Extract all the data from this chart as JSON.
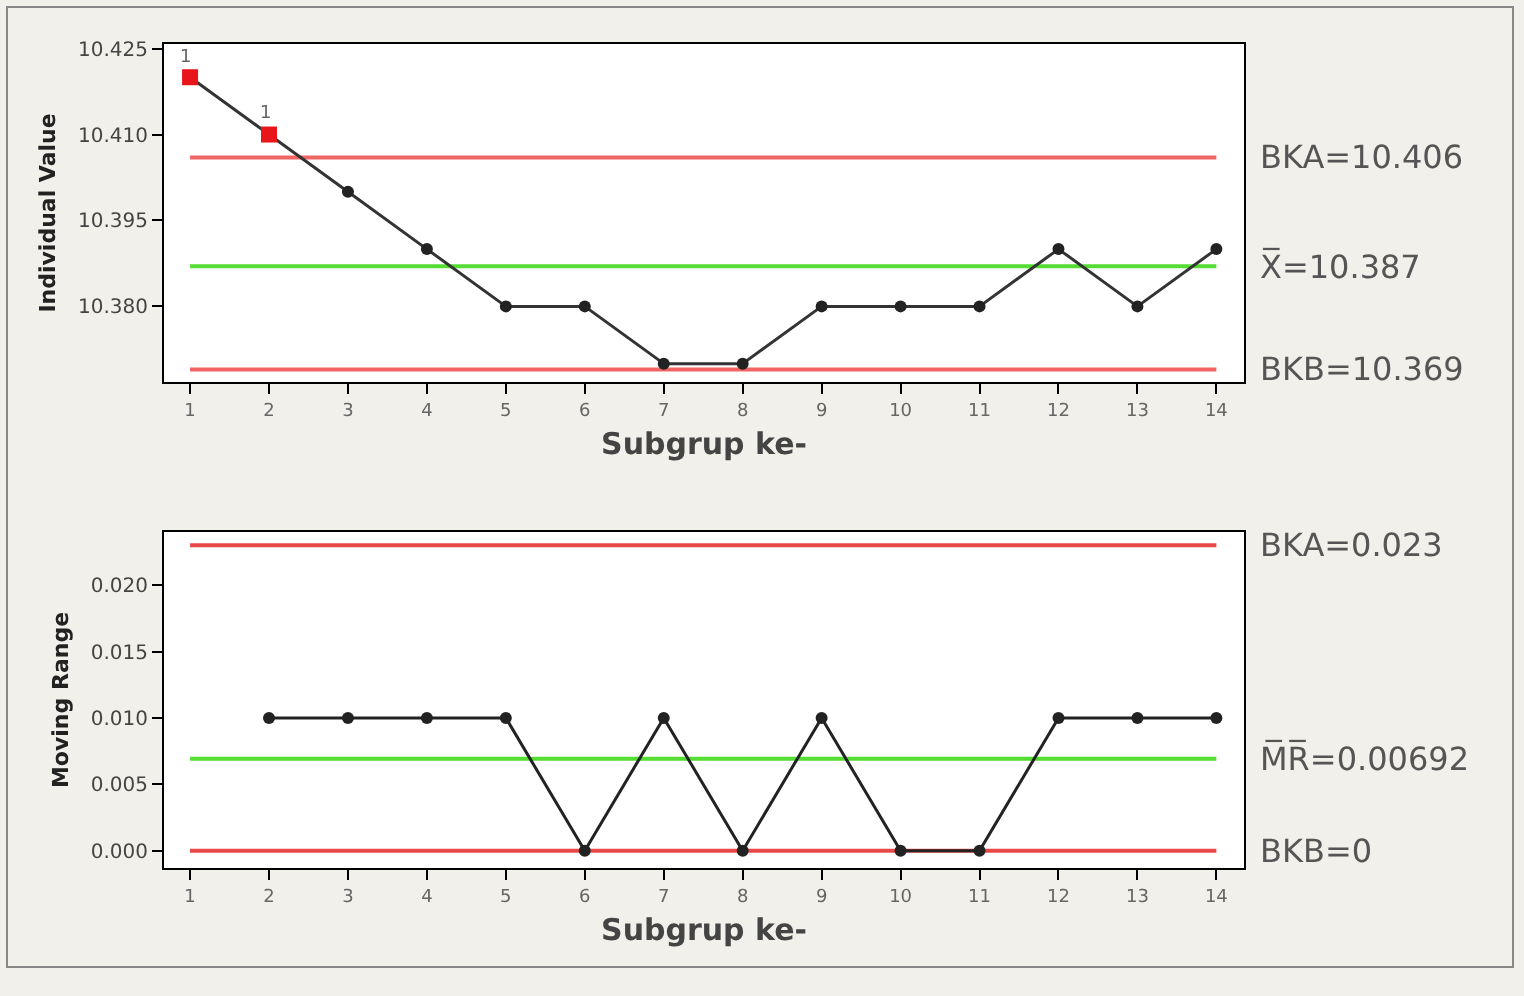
{
  "chart_data": [
    {
      "type": "line",
      "xlabel": "Subgrup ke-",
      "ylabel": "Individual Value",
      "x": [
        1,
        2,
        3,
        4,
        5,
        6,
        7,
        8,
        9,
        10,
        11,
        12,
        13,
        14
      ],
      "series": [
        {
          "type": "line",
          "color": "#333333",
          "marker": "none",
          "values": [
            10.42,
            10.41,
            10.4,
            10.39,
            10.38,
            10.38,
            10.37,
            10.37,
            10.38,
            10.38,
            10.38,
            10.39,
            10.38,
            10.39
          ]
        },
        {
          "type": "scatter",
          "color": "#222222",
          "marker": "circle",
          "values": [
            null,
            null,
            10.4,
            10.39,
            10.38,
            10.38,
            10.37,
            10.37,
            10.38,
            10.38,
            10.38,
            10.39,
            10.38,
            10.39
          ]
        },
        {
          "type": "scatter",
          "color": "#e8161b",
          "marker": "square",
          "values": [
            10.42,
            10.41,
            null,
            null,
            null,
            null,
            null,
            null,
            null,
            null,
            null,
            null,
            null,
            null
          ]
        }
      ],
      "xlim": [
        0.67,
        14.35
      ],
      "xticks": [
        1,
        2,
        3,
        4,
        5,
        6,
        7,
        8,
        9,
        10,
        11,
        12,
        13,
        14
      ],
      "ylim": [
        10.3668,
        10.4258
      ],
      "yticks": [
        {
          "value": 10.38,
          "label": "10.380"
        },
        {
          "value": 10.395,
          "label": "10.395"
        },
        {
          "value": 10.41,
          "label": "10.410"
        },
        {
          "value": 10.425,
          "label": "10.425"
        }
      ],
      "ref_lines": [
        {
          "axis": "y",
          "value": 10.406,
          "label": "BKA=10.406",
          "color": "#f06464"
        },
        {
          "axis": "y",
          "value": 10.387,
          "label": "X̅=10.387",
          "color": "#55dd33"
        },
        {
          "axis": "y",
          "value": 10.369,
          "label": "BKB=10.369",
          "color": "#f06464"
        }
      ],
      "annotations": [
        {
          "text": "1",
          "x": 1,
          "y": 10.42
        },
        {
          "text": "1",
          "x": 2,
          "y": 10.41
        }
      ]
    },
    {
      "type": "line",
      "xlabel": "Subgrup ke-",
      "ylabel": "Moving Range",
      "series": [
        {
          "type": "line",
          "color": "#222222",
          "marker": "circle",
          "x": [
            2,
            3,
            4,
            5,
            6,
            7,
            8,
            9,
            10,
            11,
            12,
            13,
            14
          ],
          "values": [
            0.01,
            0.01,
            0.01,
            0.01,
            0,
            0.01,
            0,
            0.01,
            0,
            0,
            0.01,
            0.01,
            0.01
          ]
        }
      ],
      "xlim": [
        0.67,
        14.35
      ],
      "xticks": [
        1,
        2,
        3,
        4,
        5,
        6,
        7,
        8,
        9,
        10,
        11,
        12,
        13,
        14
      ],
      "ylim": [
        -0.0013,
        0.024
      ],
      "yticks": [
        {
          "value": 0,
          "label": "0.000"
        },
        {
          "value": 0.005,
          "label": "0.005"
        },
        {
          "value": 0.01,
          "label": "0.010"
        },
        {
          "value": 0.015,
          "label": "0.015"
        },
        {
          "value": 0.02,
          "label": "0.020"
        }
      ],
      "ref_lines": [
        {
          "axis": "y",
          "value": 0.023,
          "label": "BKA=0.023",
          "color": "#e84848"
        },
        {
          "axis": "y",
          "value": 0.00692,
          "label": "M̅R̅=0.00692",
          "color": "#55dd33"
        },
        {
          "axis": "y",
          "value": 0,
          "label": "BKB=0",
          "color": "#e84848"
        }
      ]
    }
  ]
}
